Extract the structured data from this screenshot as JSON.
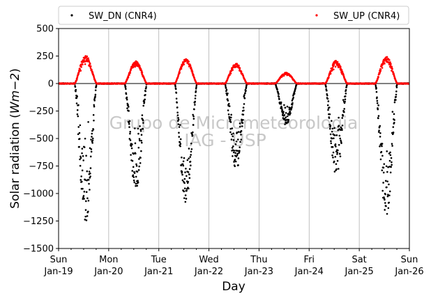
{
  "chart_data": {
    "type": "scatter",
    "xlabel": "Day",
    "ylabel_prefix": "Solar radiation (",
    "ylabel_unit": "Wm",
    "ylabel_exp": "−2",
    "ylabel_suffix": ")",
    "ylim": [
      -1500,
      500
    ],
    "yticks": [
      500,
      250,
      0,
      -250,
      -500,
      -750,
      -1000,
      -1250,
      -1500
    ],
    "ytick_labels": [
      "500",
      "250",
      "0",
      "−250",
      "−500",
      "−750",
      "−1000",
      "−1250",
      "−1500"
    ],
    "xlim": [
      "2020-01-19",
      "2020-01-26"
    ],
    "xticks": [
      {
        "weekday": "Sun",
        "date": "Jan-19"
      },
      {
        "weekday": "Mon",
        "date": "Jan-20"
      },
      {
        "weekday": "Tue",
        "date": "Jan-21"
      },
      {
        "weekday": "Wed",
        "date": "Jan-22"
      },
      {
        "weekday": "Thu",
        "date": "Jan-23"
      },
      {
        "weekday": "Fri",
        "date": "Jan-24"
      },
      {
        "weekday": "Sat",
        "date": "Jan-25"
      },
      {
        "weekday": "Sun",
        "date": "Jan-26"
      }
    ],
    "grid": "vertical",
    "legend_position": "top",
    "watermark": [
      "Grupo de Micrometeorologia",
      "IAG - USP"
    ],
    "series": [
      {
        "name": "SW_DN (CNR4)",
        "color": "#000000",
        "daily_peak": [
          -1290,
          -1000,
          -1100,
          -800,
          -380,
          -860,
          -1230
        ],
        "daily_spread": [
          0.55,
          0.45,
          0.35,
          0.45,
          0.35,
          0.45,
          0.45
        ]
      },
      {
        "name": "SW_UP (CNR4)",
        "color": "#ff0000",
        "daily_peak": [
          255,
          205,
          225,
          185,
          100,
          210,
          245
        ],
        "daily_spread": [
          0.25,
          0.2,
          0.15,
          0.2,
          0.2,
          0.25,
          0.2
        ]
      }
    ]
  }
}
